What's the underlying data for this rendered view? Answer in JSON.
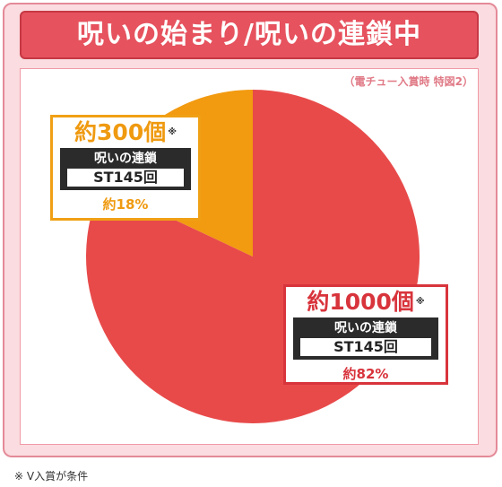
{
  "title": "呪いの始まり/呪いの連鎖中",
  "condition_note": "（電チュー入賞時 特図2）",
  "footnote": "※ V入賞が条件",
  "colors": {
    "large_slice": "#e84a4a",
    "small_slice": "#f29a10",
    "background": "#fbdce0"
  },
  "chart_data": {
    "type": "pie",
    "slices": [
      {
        "label": "約1000個",
        "value": 82,
        "percent_label": "約82%",
        "series": "呪いの連鎖",
        "st": "ST145回",
        "mark": "※",
        "color": "#e84a4a"
      },
      {
        "label": "約300個",
        "value": 18,
        "percent_label": "約18%",
        "series": "呪いの連鎖",
        "st": "ST145回",
        "mark": "※",
        "color": "#f29a10"
      }
    ]
  }
}
